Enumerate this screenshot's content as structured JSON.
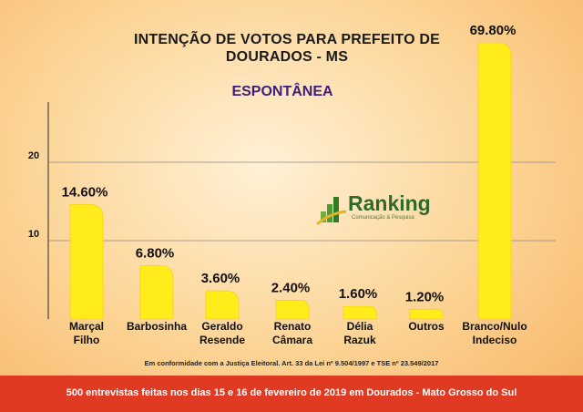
{
  "chart_data": {
    "type": "bar",
    "title": "INTENÇÃO DE VOTOS PARA PREFEITO DE DOURADOS - MS",
    "subtitle": "ESPONTÂNEA",
    "categories": [
      [
        "Marçal",
        "Filho"
      ],
      [
        "Barbosinha"
      ],
      [
        "Geraldo",
        "Resende"
      ],
      [
        "Renato",
        "Câmara"
      ],
      [
        "Délia",
        "Razuk"
      ],
      [
        "Outros"
      ],
      [
        "Branco/Nulo",
        "Indeciso"
      ]
    ],
    "values": [
      14.6,
      6.8,
      3.6,
      2.4,
      1.6,
      1.2,
      69.8
    ],
    "value_labels": [
      "14.60%",
      "6.80%",
      "3.60%",
      "2.40%",
      "1.60%",
      "1.20%",
      "69.80%"
    ],
    "y_ticks": [
      10,
      20
    ],
    "ylim": [
      0,
      20
    ],
    "grid": true,
    "bar_color": "#ffec1a"
  },
  "logo": {
    "name": "Ranking",
    "sub": "Comunicação & Pesquisa"
  },
  "note": "Em conformidade com a Justiça Eleitoral. Art. 33 da Lei nº 9.504/1997 e TSE nº 23.549/2017",
  "footer": "500 entrevistas feitas nos dias 15 e 16 de fevereiro de 2019 em Dourados - Mato Grosso do Sul"
}
